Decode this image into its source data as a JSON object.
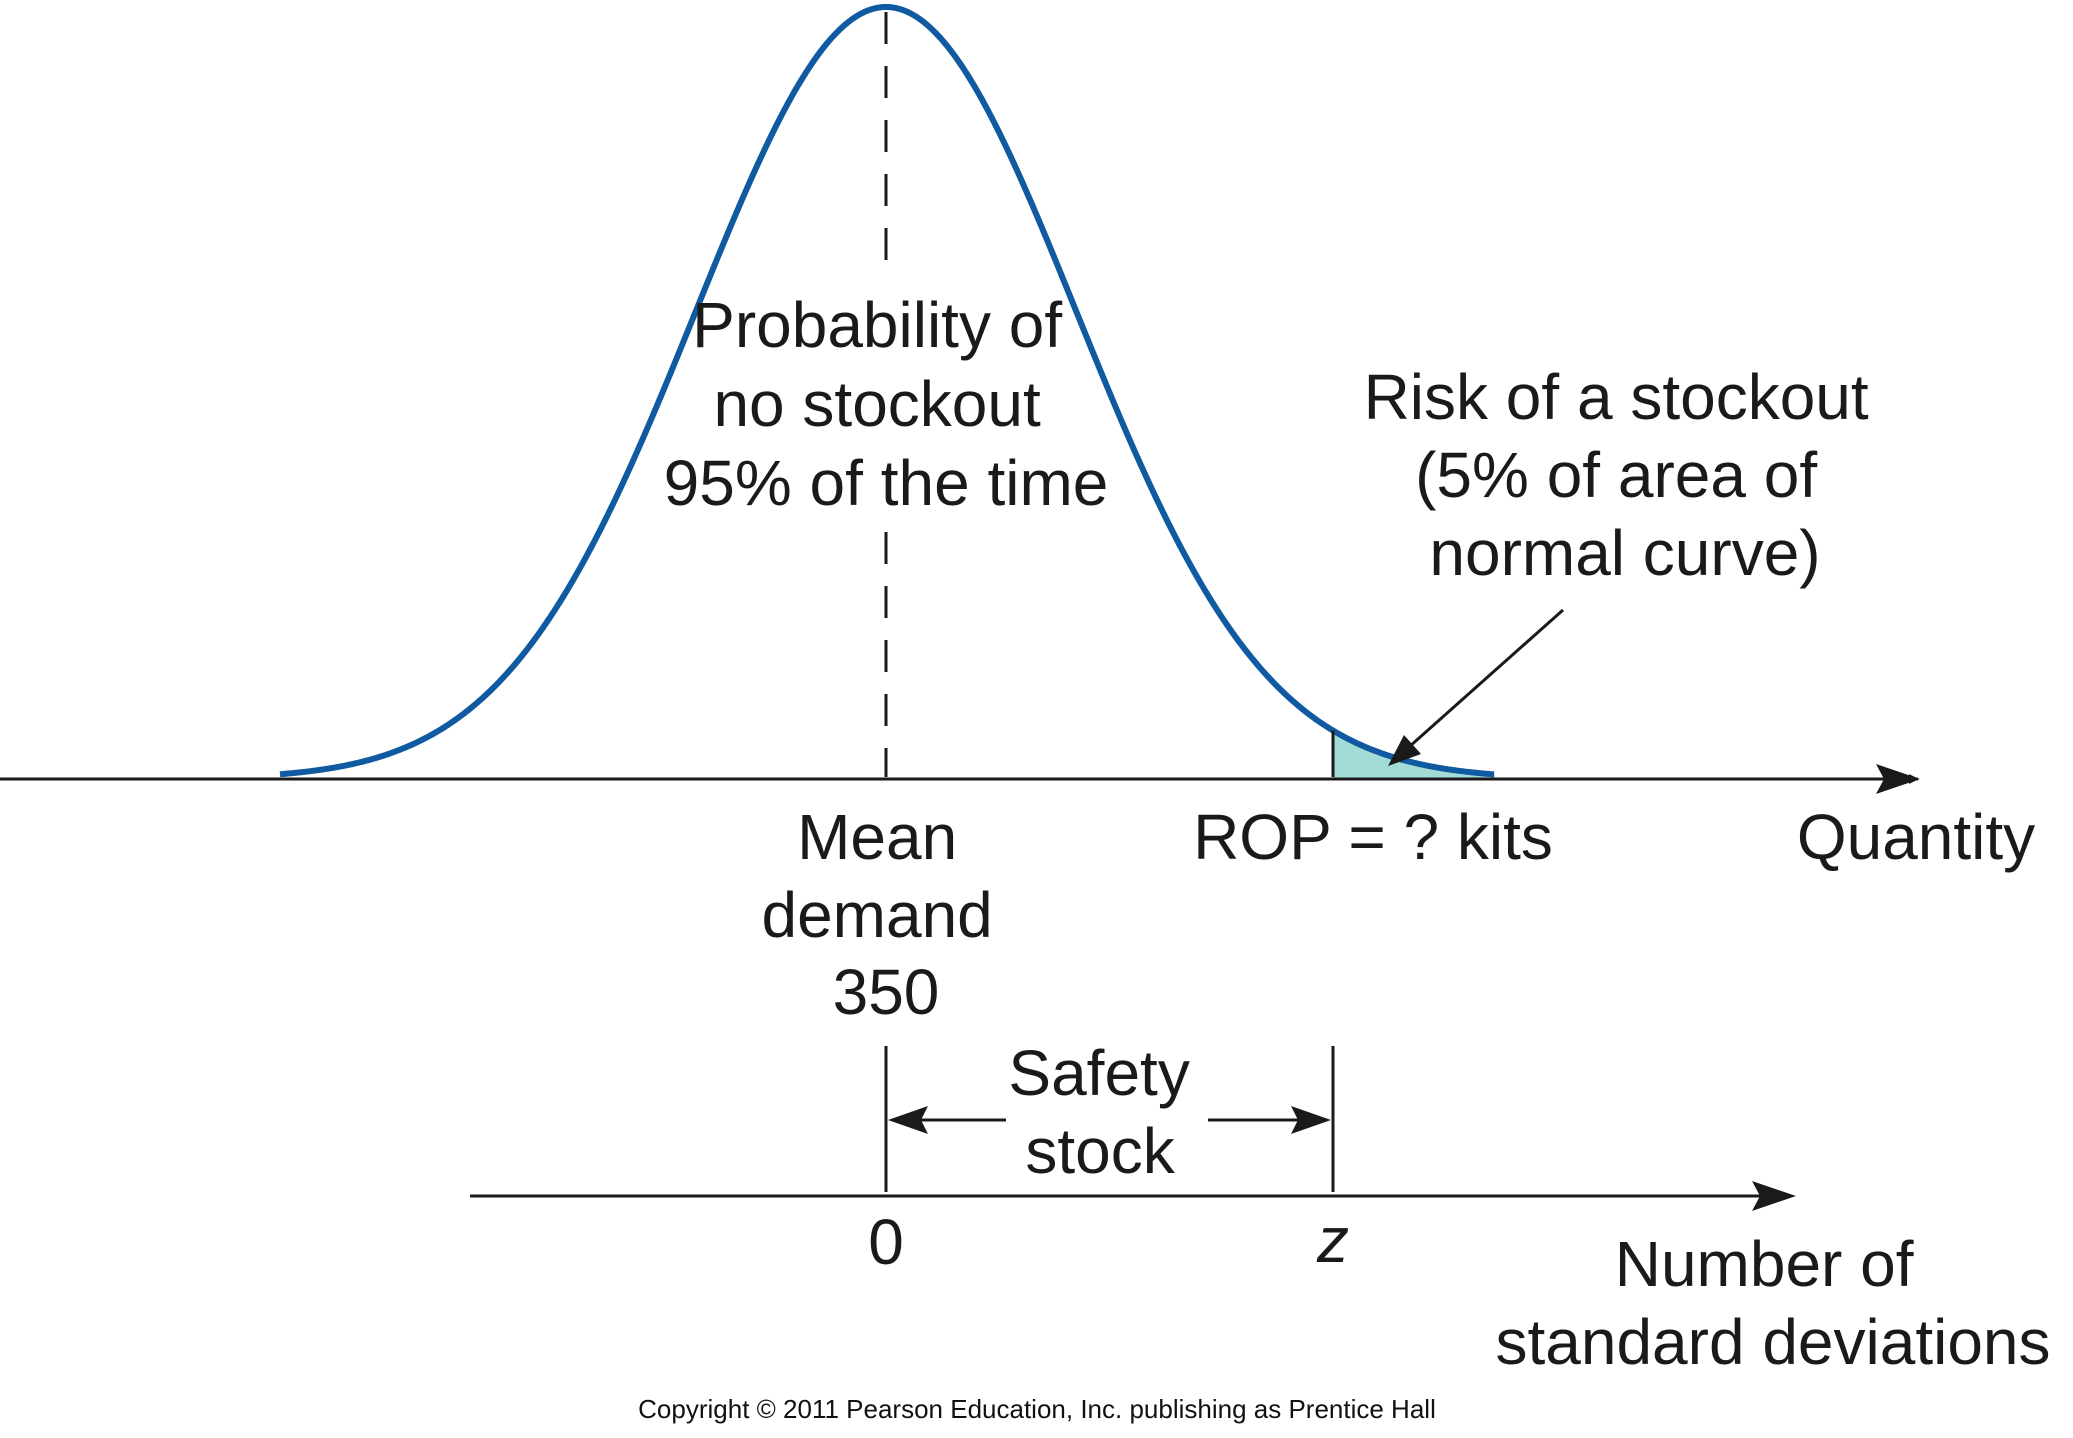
{
  "colors": {
    "curve": "#0f5aa0",
    "shade": "#a3dbd6",
    "ink": "#1a1a1a"
  },
  "diagram": {
    "top_axis_label": "Quantity",
    "mean_label": [
      "Mean",
      "demand",
      "350"
    ],
    "rop_label": "ROP = ? kits",
    "probability_label": [
      "Probability of",
      "no stockout",
      "95% of the time"
    ],
    "risk_label": [
      "Risk of a stockout",
      "(5% of area of",
      "normal curve)"
    ],
    "safety_stock_label": [
      "Safety",
      "stock"
    ],
    "bottom_axis_zero": "0",
    "bottom_axis_z": "z",
    "bottom_axis_label": [
      "Number of",
      "standard deviations"
    ],
    "stockout_area_percent": 5,
    "no_stockout_percent": 95
  },
  "copyright": "Copyright © 2011 Pearson Education, Inc. publishing as Prentice Hall"
}
